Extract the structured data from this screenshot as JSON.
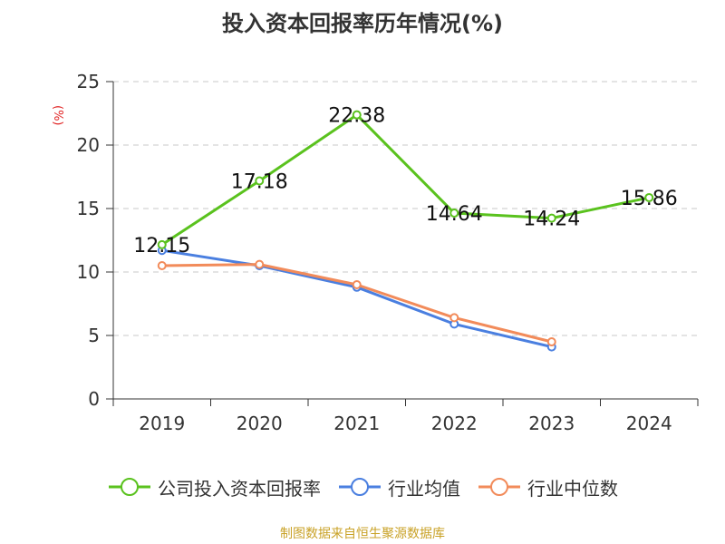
{
  "chart_data": {
    "type": "line",
    "title": "投入资本回报率历年情况(%)",
    "ylabel": "(%)",
    "categories": [
      "2019",
      "2020",
      "2021",
      "2022",
      "2023",
      "2024"
    ],
    "ylim": [
      0,
      25
    ],
    "yticks": [
      "0",
      "5",
      "10",
      "15",
      "20",
      "25"
    ],
    "grid": true,
    "legend_position": "bottom",
    "series": [
      {
        "name": "公司投入资本回报率",
        "color": "#5ac21e",
        "values": [
          12.15,
          17.18,
          22.38,
          14.64,
          14.24,
          15.86
        ],
        "labels": [
          "12.15",
          "17.18",
          "22.38",
          "14.64",
          "14.24",
          "15.86"
        ]
      },
      {
        "name": "行业均值",
        "color": "#4a7fe0",
        "values": [
          11.7,
          10.5,
          8.8,
          5.9,
          4.1,
          null
        ]
      },
      {
        "name": "行业中位数",
        "color": "#f28b5a",
        "values": [
          10.5,
          10.6,
          9.0,
          6.4,
          4.5,
          null
        ]
      }
    ]
  },
  "source": "制图数据来自恒生聚源数据库"
}
